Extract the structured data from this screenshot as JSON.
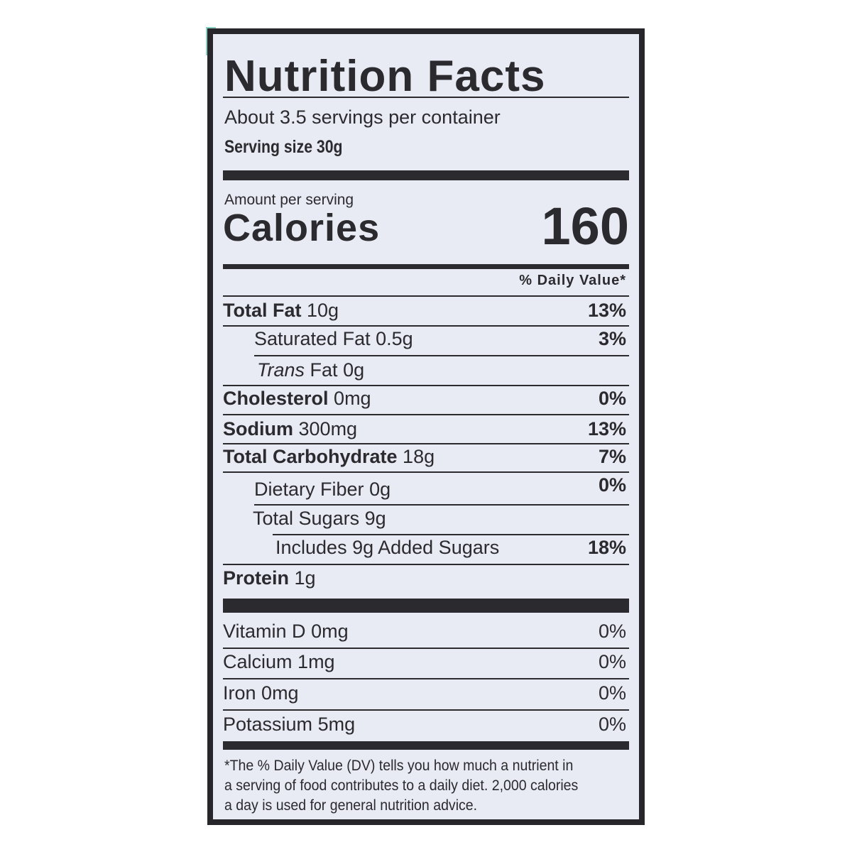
{
  "title": "Nutrition Facts",
  "servings_per_container": "About 3.5 servings per container",
  "serving_size": "Serving size 30g",
  "amount_per_serving": "Amount per serving",
  "calories_label": "Calories",
  "calories_value": "160",
  "daily_value_header": "% Daily Value*",
  "nutrients": [
    {
      "name": "Total Fat",
      "amount": "10g",
      "dv": "13%"
    },
    {
      "name": "Saturated Fat",
      "amount": "0.5g",
      "dv": "3%"
    },
    {
      "name_italic": "Trans",
      "name": "Fat",
      "amount": "0g",
      "dv": ""
    },
    {
      "name": "Cholesterol",
      "amount": "0mg",
      "dv": "0%"
    },
    {
      "name": "Sodium",
      "amount": "300mg",
      "dv": "13%"
    },
    {
      "name": "Total Carbohydrate",
      "amount": "18g",
      "dv": "7%"
    },
    {
      "name": "Dietary Fiber",
      "amount": "0g",
      "dv": "0%"
    },
    {
      "name": "Total Sugars",
      "amount": "9g",
      "dv": ""
    },
    {
      "name": "Includes 9g Added Sugars",
      "amount": "",
      "dv": "18%"
    },
    {
      "name": "Protein",
      "amount": "1g",
      "dv": ""
    }
  ],
  "micronutrients": [
    {
      "name": "Vitamin D",
      "amount": "0mg",
      "dv": "0%"
    },
    {
      "name": "Calcium",
      "amount": "1mg",
      "dv": "0%"
    },
    {
      "name": "Iron",
      "amount": "0mg",
      "dv": "0%"
    },
    {
      "name": "Potassium",
      "amount": "5mg",
      "dv": "0%"
    }
  ],
  "footnote": [
    "*The % Daily Value (DV) tells you how much a nutrient in",
    "a serving of food contributes to a daily diet. 2,000 calories",
    "a day is used for general nutrition advice."
  ],
  "colors": {
    "ink": "#2b2a2f",
    "label_bg": "#e9ebf4",
    "accent_teal": "#8fd3c8"
  }
}
